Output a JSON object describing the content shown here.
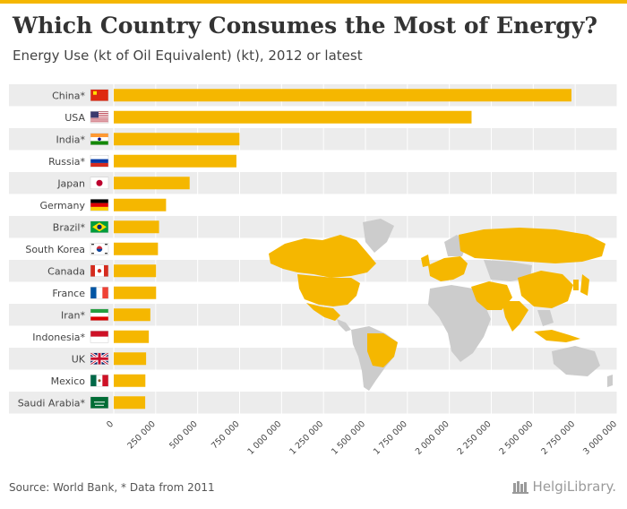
{
  "title": "Which Country Consumes the Most of Energy?",
  "subtitle": "Energy Use (kt of Oil Equivalent) (kt), 2012 or latest",
  "footer": {
    "source": "Source: World Bank, * Data from 2011",
    "brand": "HelgiLibrary."
  },
  "colors": {
    "bar": "#f5b700",
    "stripe": "#ececec",
    "map_highlight": "#f5b700",
    "map_other": "#cccccc"
  },
  "chart_data": {
    "type": "bar",
    "orientation": "horizontal",
    "title": "Which Country Consumes the Most of Energy?",
    "subtitle": "Energy Use (kt of Oil Equivalent) (kt), 2012 or latest",
    "categories": [
      "China*",
      "USA",
      "India*",
      "Russia*",
      "Japan",
      "Germany",
      "Brazil*",
      "South Korea",
      "Canada",
      "France",
      "Iran*",
      "Indonesia*",
      "UK",
      "Mexico",
      "Saudi Arabia*"
    ],
    "flags": [
      "flag-china-icon",
      "flag-usa-icon",
      "flag-india-icon",
      "flag-russia-icon",
      "flag-japan-icon",
      "flag-germany-icon",
      "flag-brazil-icon",
      "flag-south-korea-icon",
      "flag-canada-icon",
      "flag-france-icon",
      "flag-iran-icon",
      "flag-indonesia-icon",
      "flag-uk-icon",
      "flag-mexico-icon",
      "flag-saudi-arabia-icon"
    ],
    "values": [
      2727700,
      2132400,
      749400,
      731000,
      452300,
      311700,
      270000,
      263400,
      251800,
      252300,
      218000,
      209000,
      192800,
      188400,
      187400
    ],
    "xlim": [
      0,
      3000000
    ],
    "xticks": [
      0,
      250000,
      500000,
      750000,
      1000000,
      1250000,
      1500000,
      1750000,
      2000000,
      2250000,
      2500000,
      2750000,
      3000000
    ],
    "xtick_labels": [
      "0",
      "250 000",
      "500 000",
      "750 000",
      "1 000 000",
      "1 250 000",
      "1 500 000",
      "1 750 000",
      "2 000 000",
      "2 250 000",
      "2 500 000",
      "2 750 000",
      "3 000 000"
    ],
    "grid": true,
    "xlabel": "",
    "ylabel": ""
  }
}
